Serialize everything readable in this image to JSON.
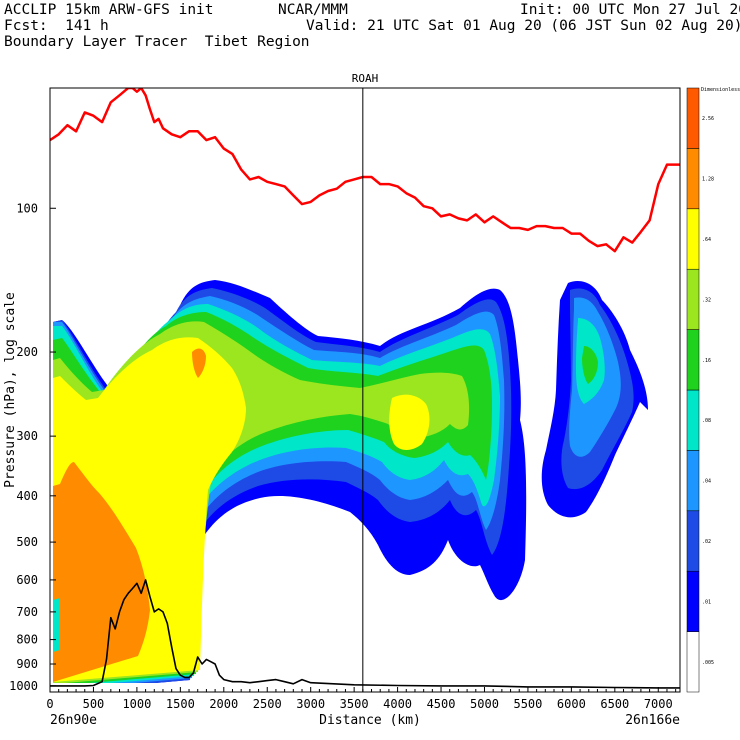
{
  "header": {
    "line1_left": "ACCLIP 15km ARW-GFS init",
    "line1_mid": "NCAR/MMM",
    "line1_right": "Init: 00 UTC Mon 27 Jul 20",
    "line2_left": "Fcst:  141 h",
    "line2_right": "Valid: 21 UTC Sat 01 Aug 20 (06 JST Sun 02 Aug 20)",
    "line3_left": "Boundary Layer Tracer  Tibet Region"
  },
  "chart_data": {
    "type": "contour",
    "subtitle": "ROAH",
    "xlabel": "Distance (km)",
    "ylabel": "Pressure (hPa), log scale",
    "x_ticks": [
      "0",
      "500",
      "1000",
      "1500",
      "2000",
      "2500",
      "3000",
      "3500",
      "4000",
      "4500",
      "5000",
      "5500",
      "6000",
      "6500",
      "7000"
    ],
    "y_ticks": [
      "100",
      "200",
      "300",
      "400",
      "500",
      "600",
      "700",
      "800",
      "900",
      "1000"
    ],
    "endpoint_left": "26n90e",
    "endpoint_right": "26n166e",
    "xlim": [
      0,
      7250
    ],
    "ylim_hpa": [
      1030,
      56
    ],
    "marker_x_km": 3600,
    "colorbar": {
      "title": "Dimensionless",
      "labels": [
        ".005",
        ".01",
        ".02",
        ".04",
        ".08",
        ".16",
        ".32",
        ".64",
        "1.28",
        "2.56"
      ],
      "colors": [
        "#ffffff",
        "#0000ff",
        "#1e4be6",
        "#1e96ff",
        "#00e6c8",
        "#1ed21e",
        "#9be61e",
        "#ffff00",
        "#ff8c00",
        "#ff5a00"
      ]
    },
    "series": [
      {
        "name": "tropopause",
        "color": "#ff0000",
        "x": [
          0,
          100,
          200,
          300,
          400,
          500,
          600,
          700,
          800,
          900,
          950,
          1000,
          1050,
          1100,
          1150,
          1200,
          1250,
          1300,
          1400,
          1500,
          1600,
          1700,
          1800,
          1900,
          2000,
          2100,
          2200,
          2300,
          2400,
          2500,
          2600,
          2700,
          2800,
          2900,
          3000,
          3100,
          3200,
          3300,
          3400,
          3500,
          3600,
          3700,
          3800,
          3900,
          4000,
          4100,
          4200,
          4300,
          4400,
          4500,
          4600,
          4700,
          4800,
          4900,
          5000,
          5100,
          5200,
          5300,
          5400,
          5500,
          5600,
          5700,
          5800,
          5900,
          6000,
          6100,
          6200,
          6300,
          6400,
          6500,
          6600,
          6700,
          6800,
          6900,
          7000,
          7100,
          7200,
          7250
        ],
        "y": [
          72,
          70,
          67,
          69,
          63,
          64,
          66,
          60,
          58,
          56,
          56,
          57,
          56,
          58,
          62,
          66,
          65,
          68,
          70,
          71,
          69,
          69,
          72,
          71,
          75,
          77,
          83,
          87,
          86,
          88,
          89,
          90,
          94,
          98,
          97,
          94,
          92,
          91,
          88,
          87,
          86,
          86,
          89,
          89,
          90,
          93,
          95,
          99,
          100,
          104,
          103,
          105,
          106,
          103,
          107,
          104,
          107,
          110,
          110,
          111,
          109,
          109,
          110,
          110,
          113,
          113,
          117,
          120,
          119,
          123,
          115,
          118,
          112,
          106,
          89,
          81,
          81,
          81
        ]
      },
      {
        "name": "terrain",
        "color": "#000000",
        "x": [
          0,
          100,
          200,
          300,
          400,
          500,
          600,
          650,
          700,
          750,
          800,
          850,
          900,
          950,
          1000,
          1050,
          1100,
          1150,
          1200,
          1250,
          1300,
          1350,
          1400,
          1450,
          1500,
          1550,
          1600,
          1650,
          1700,
          1750,
          1800,
          1850,
          1900,
          1950,
          2000,
          2100,
          2200,
          2300,
          2400,
          2500,
          2600,
          2700,
          2800,
          2900,
          3000,
          3500,
          4000,
          4500,
          5000,
          5500,
          6000,
          6500,
          7000,
          7250
        ],
        "y": [
          1000,
          1000,
          1000,
          1000,
          1000,
          998,
          980,
          880,
          720,
          760,
          700,
          660,
          640,
          625,
          610,
          640,
          600,
          650,
          700,
          690,
          700,
          740,
          830,
          920,
          950,
          960,
          960,
          940,
          870,
          900,
          880,
          890,
          900,
          950,
          970,
          980,
          980,
          985,
          980,
          975,
          970,
          980,
          990,
          970,
          985,
          995,
          998,
          1000,
          1000,
          1005,
          1005,
          1008,
          1010,
          1010
        ]
      }
    ],
    "grid": false
  }
}
